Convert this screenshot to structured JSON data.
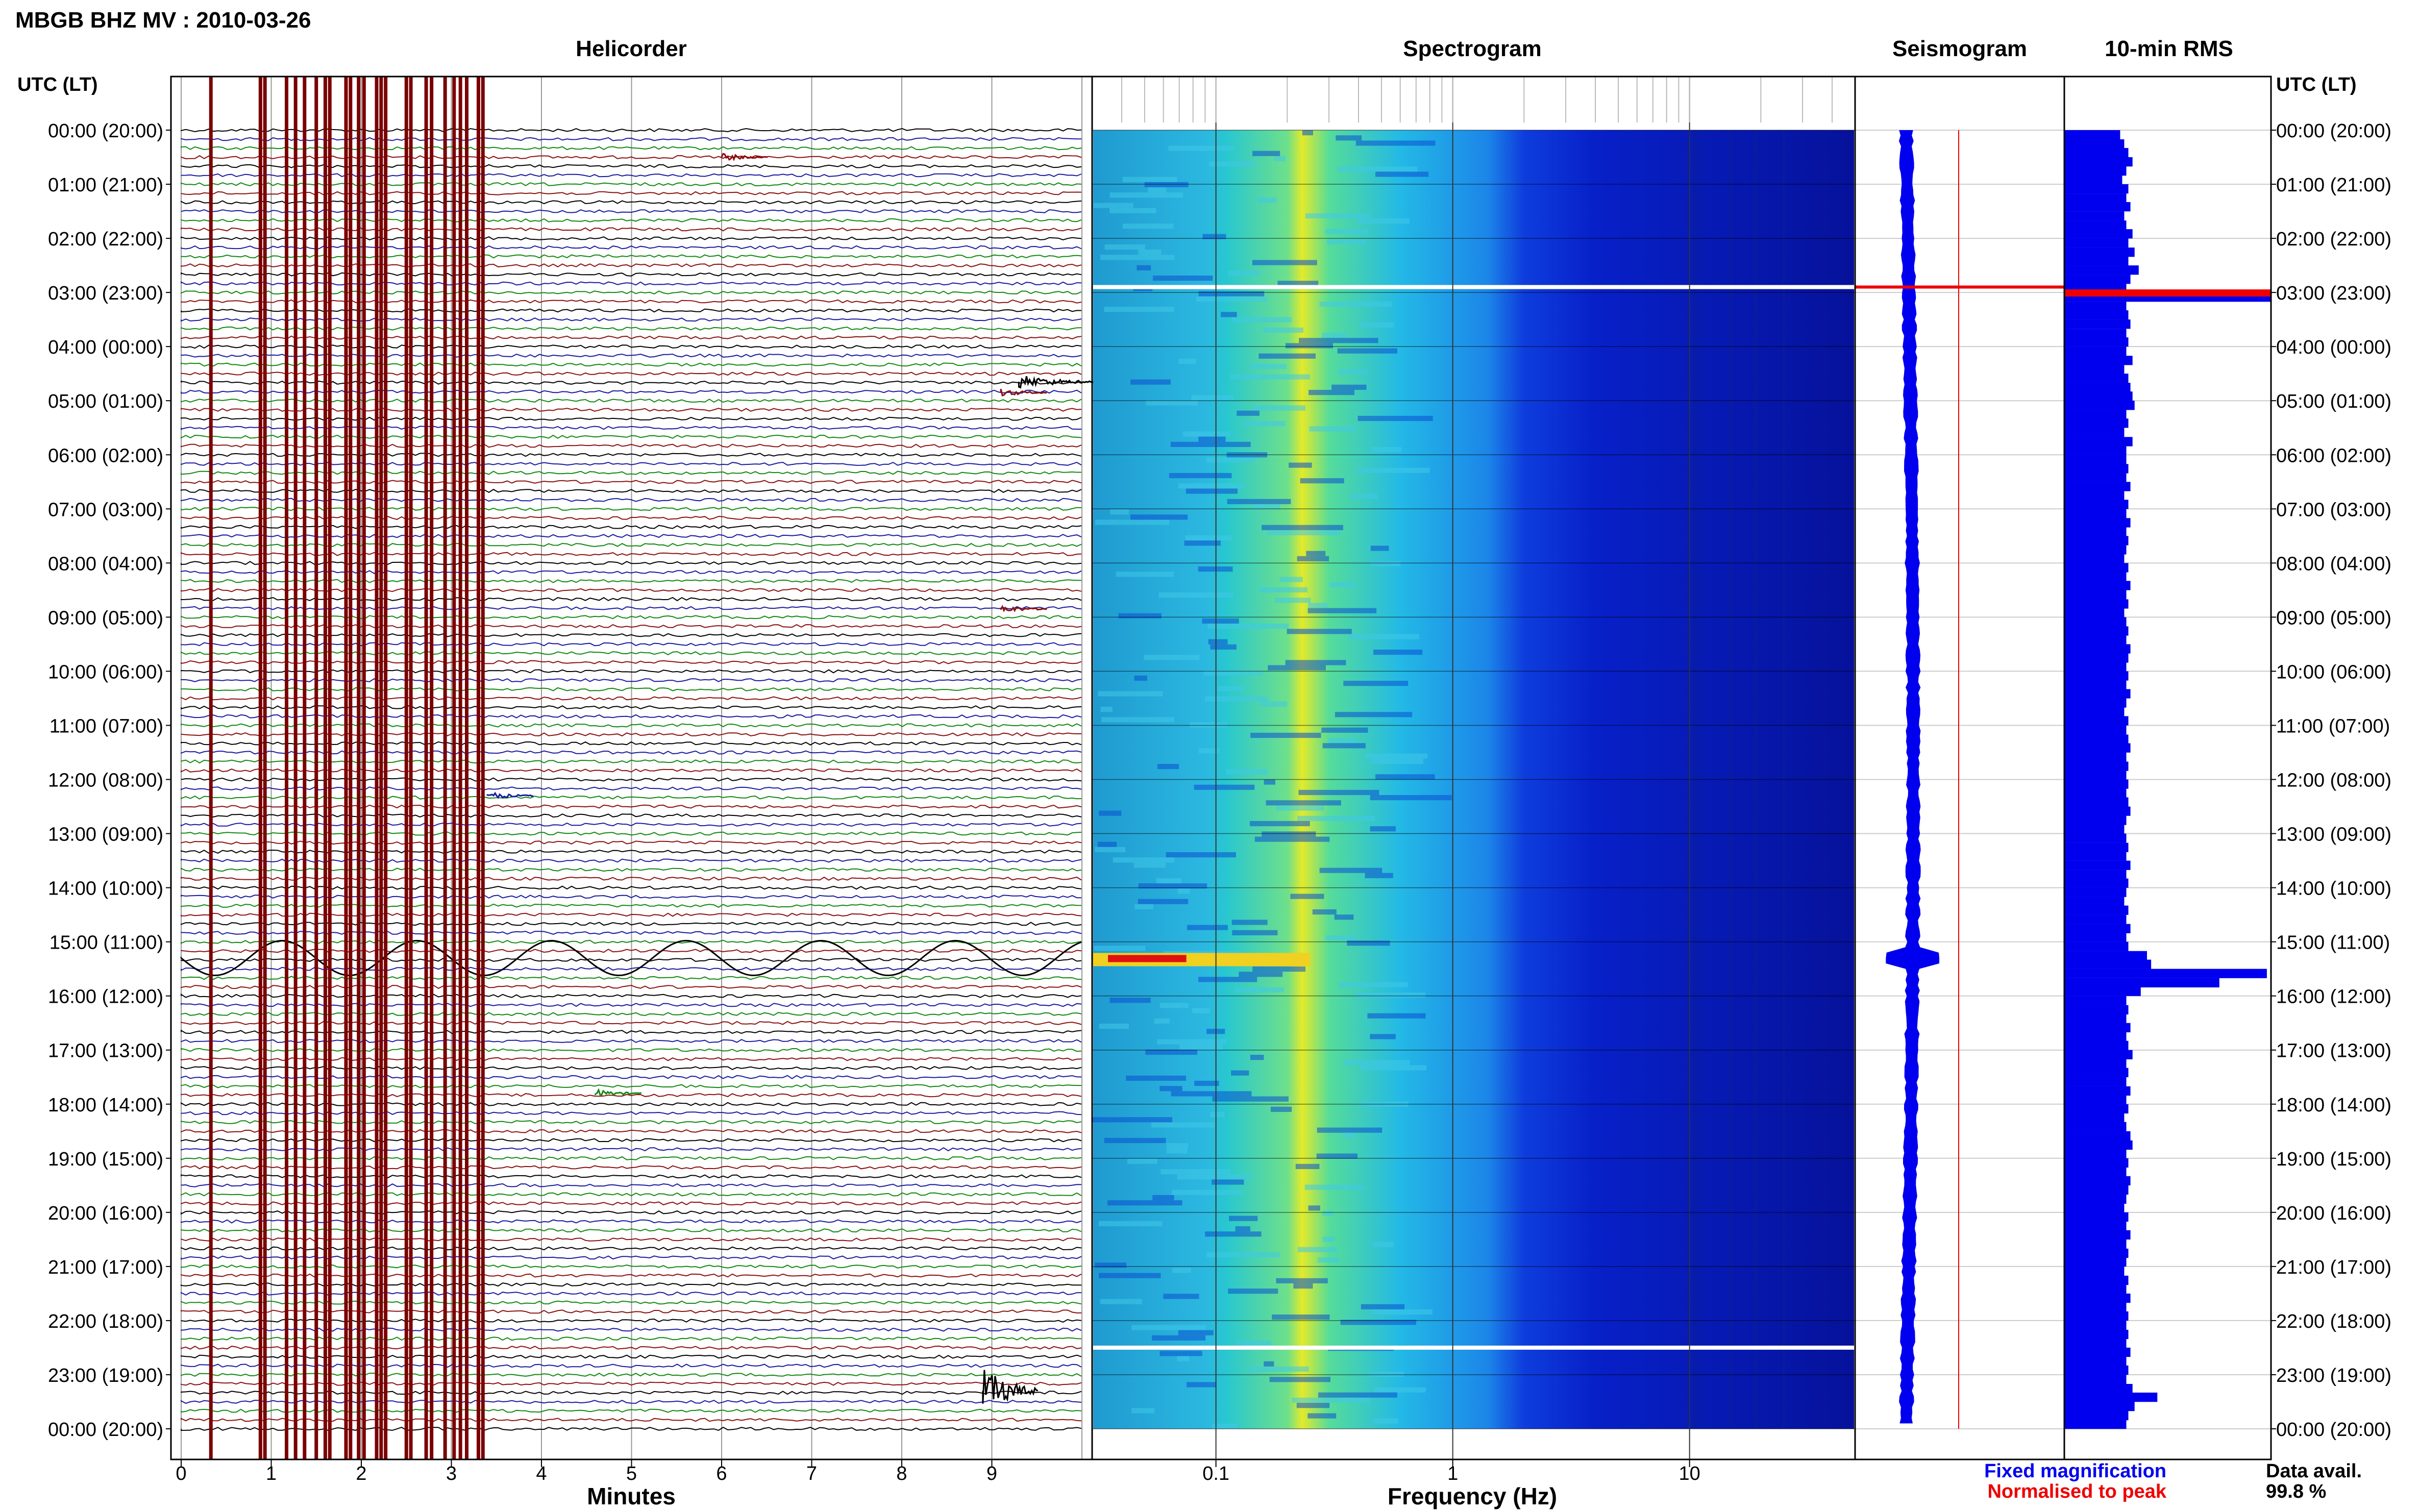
{
  "title": "MBGB BHZ MV : 2010-03-26",
  "panels": {
    "helicorder": "Helicorder",
    "spectrogram": "Spectrogram",
    "seismogram": "Seismogram",
    "rms": "10-min RMS"
  },
  "time_axis_label": "UTC (LT)",
  "time_labels": [
    "00:00 (20:00)",
    "01:00 (21:00)",
    "02:00 (22:00)",
    "03:00 (23:00)",
    "04:00 (00:00)",
    "05:00 (01:00)",
    "06:00 (02:00)",
    "07:00 (03:00)",
    "08:00 (04:00)",
    "09:00 (05:00)",
    "10:00 (06:00)",
    "11:00 (07:00)",
    "12:00 (08:00)",
    "13:00 (09:00)",
    "14:00 (10:00)",
    "15:00 (11:00)",
    "16:00 (12:00)",
    "17:00 (13:00)",
    "18:00 (14:00)",
    "19:00 (15:00)",
    "20:00 (16:00)",
    "21:00 (17:00)",
    "22:00 (18:00)",
    "23:00 (19:00)",
    "00:00 (20:00)"
  ],
  "x_labels": {
    "minutes": "Minutes",
    "frequency": "Frequency (Hz)"
  },
  "minute_ticks": [
    "0",
    "1",
    "2",
    "3",
    "4",
    "5",
    "6",
    "7",
    "8",
    "9"
  ],
  "freq_ticks": [
    "0.1",
    "1",
    "10"
  ],
  "legend": {
    "fixed": "Fixed magnification",
    "normalised": "Normalised to peak",
    "fixed_color": "#0000ee",
    "normalised_color": "#ee0000"
  },
  "data_avail_label": "Data avail.",
  "data_avail_value": "99.8 %",
  "colors": {
    "trace_cycle": [
      "#000000",
      "#1a1aa0",
      "#118811",
      "#8b1010"
    ],
    "gap_lines": "#7a0000",
    "rms": "#0000ee",
    "peak": "#ee0000"
  },
  "chart_data": {
    "type": "heatmap",
    "helicorder": {
      "xlim_minutes": [
        0,
        10
      ],
      "rows_per_hour": 6,
      "gap_minutes": [
        0.33,
        0.88,
        0.93,
        1.17,
        1.27,
        1.37,
        1.5,
        1.6,
        1.65,
        1.83,
        1.88,
        1.97,
        2.03,
        2.17,
        2.22,
        2.27,
        2.5,
        2.55,
        2.72,
        2.78,
        2.93,
        3.03,
        3.1,
        3.17,
        3.3,
        3.35
      ],
      "events": [
        {
          "hour": 0.5,
          "minute": 6.0,
          "color": "dark-red",
          "size": "small"
        },
        {
          "hour": 4.65,
          "minute": 9.3,
          "color": "black",
          "size": "medium"
        },
        {
          "hour": 4.85,
          "minute": 9.1,
          "color": "dark-red",
          "size": "small"
        },
        {
          "hour": 8.85,
          "minute": 9.1,
          "color": "dark-red",
          "size": "small"
        },
        {
          "hour": 12.3,
          "minute": 3.4,
          "color": "blue",
          "size": "small"
        },
        {
          "hour": 15.3,
          "minute": 0.0,
          "color": "black",
          "size": "long-period"
        },
        {
          "hour": 17.8,
          "minute": 4.6,
          "color": "green",
          "size": "small"
        },
        {
          "hour": 23.3,
          "minute": 8.9,
          "color": "black",
          "size": "large"
        }
      ]
    },
    "spectrogram": {
      "freq_range_hz": [
        0.03,
        50
      ],
      "time_range_h": [
        0,
        24
      ],
      "xscale": "log",
      "gaps_h": [
        2.9,
        22.5
      ],
      "strong_event_h": 15.3
    },
    "rms": {
      "hours": [
        0,
        0.17,
        0.33,
        0.5,
        0.67,
        0.83,
        1,
        1.17,
        1.33,
        1.5,
        1.67,
        1.83,
        2,
        2.17,
        2.33,
        2.5,
        2.67,
        2.83,
        3,
        3.17,
        3.33,
        3.5,
        3.67,
        3.83,
        4,
        4.17,
        4.33,
        4.5,
        4.67,
        4.83,
        5,
        5.17,
        5.33,
        5.5,
        5.67,
        5.83,
        6,
        6.17,
        6.33,
        6.5,
        6.67,
        6.83,
        7,
        7.17,
        7.33,
        7.5,
        7.67,
        7.83,
        8,
        8.17,
        8.33,
        8.5,
        8.67,
        8.83,
        9,
        9.17,
        9.33,
        9.5,
        9.67,
        9.83,
        10,
        10.17,
        10.33,
        10.5,
        10.67,
        10.83,
        11,
        11.17,
        11.33,
        11.5,
        11.67,
        11.83,
        12,
        12.17,
        12.33,
        12.5,
        12.67,
        12.83,
        13,
        13.17,
        13.33,
        13.5,
        13.67,
        13.83,
        14,
        14.17,
        14.33,
        14.5,
        14.67,
        14.83,
        15,
        15.17,
        15.33,
        15.5,
        15.67,
        15.83,
        16,
        16.17,
        16.33,
        16.5,
        16.67,
        16.83,
        17,
        17.17,
        17.33,
        17.5,
        17.67,
        17.83,
        18,
        18.17,
        18.33,
        18.5,
        18.67,
        18.83,
        19,
        19.17,
        19.33,
        19.5,
        19.67,
        19.83,
        20,
        20.17,
        20.33,
        20.5,
        20.67,
        20.83,
        21,
        21.17,
        21.33,
        21.5,
        21.67,
        21.83,
        22,
        22.17,
        22.33,
        22.5,
        22.67,
        22.83,
        23,
        23.17,
        23.33,
        23.5,
        23.67,
        23.83
      ],
      "values": [
        0.27,
        0.29,
        0.31,
        0.33,
        0.3,
        0.28,
        0.31,
        0.3,
        0.32,
        0.29,
        0.3,
        0.33,
        0.31,
        0.34,
        0.31,
        0.36,
        0.32,
        0.3,
        1.0,
        0.3,
        0.31,
        0.32,
        0.3,
        0.31,
        0.3,
        0.33,
        0.29,
        0.31,
        0.32,
        0.33,
        0.34,
        0.3,
        0.31,
        0.29,
        0.33,
        0.3,
        0.3,
        0.31,
        0.3,
        0.32,
        0.29,
        0.31,
        0.3,
        0.32,
        0.3,
        0.31,
        0.3,
        0.29,
        0.31,
        0.3,
        0.32,
        0.3,
        0.31,
        0.29,
        0.3,
        0.31,
        0.3,
        0.32,
        0.31,
        0.3,
        0.31,
        0.3,
        0.32,
        0.3,
        0.29,
        0.31,
        0.3,
        0.31,
        0.32,
        0.3,
        0.31,
        0.3,
        0.31,
        0.3,
        0.31,
        0.32,
        0.3,
        0.29,
        0.3,
        0.31,
        0.3,
        0.32,
        0.3,
        0.31,
        0.3,
        0.29,
        0.31,
        0.3,
        0.32,
        0.3,
        0.31,
        0.4,
        0.42,
        0.98,
        0.75,
        0.37,
        0.3,
        0.31,
        0.3,
        0.32,
        0.3,
        0.31,
        0.33,
        0.3,
        0.31,
        0.3,
        0.32,
        0.3,
        0.31,
        0.29,
        0.3,
        0.32,
        0.33,
        0.3,
        0.31,
        0.3,
        0.32,
        0.31,
        0.3,
        0.29,
        0.31,
        0.3,
        0.32,
        0.3,
        0.31,
        0.3,
        0.29,
        0.31,
        0.3,
        0.32,
        0.3,
        0.31,
        0.3,
        0.31,
        0.3,
        0.32,
        0.3,
        0.31,
        0.3,
        0.33,
        0.45,
        0.34,
        0.31,
        0.3
      ],
      "peak_hour": 3.0
    }
  }
}
